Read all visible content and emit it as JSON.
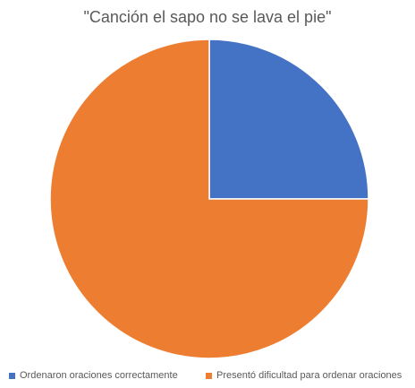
{
  "chart_data": {
    "type": "pie",
    "title": "\"Canción el sapo no se lava el pie\"",
    "categories": [
      "Ordenaron oraciones correctamente",
      "Presentó dificultad para ordenar oraciones"
    ],
    "values": [
      25,
      75
    ],
    "colors": [
      "#4472C4",
      "#ED7D31"
    ],
    "start_angle_deg": 0,
    "direction": "clockwise",
    "legend_position": "bottom"
  }
}
